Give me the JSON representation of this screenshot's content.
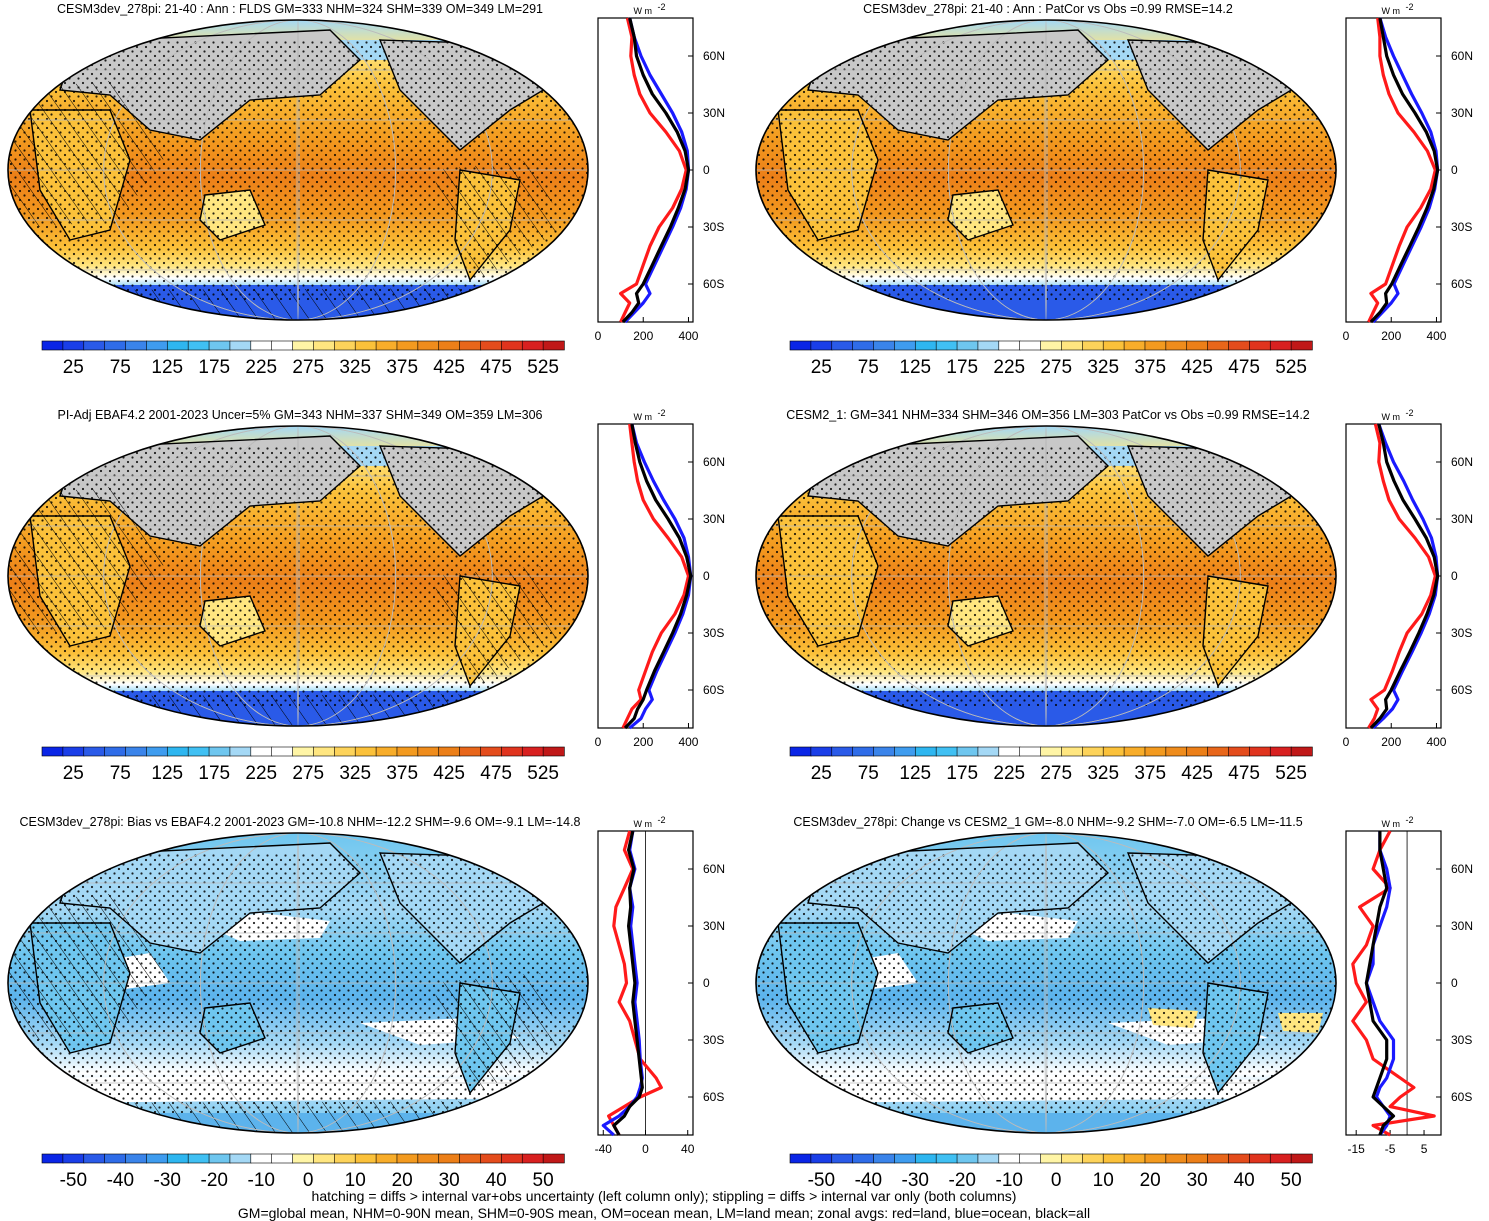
{
  "colors": {
    "ocean_warm_light": "#ffe680",
    "ocean_warm": "#fbc13a",
    "ocean_warm_deep": "#f39a1f",
    "ocean_hot": "#ec7f18",
    "ocean_cool": "#5cb3ec",
    "ocean_cold": "#2d62e0",
    "land_gray": "#c8c8c8",
    "line_land": "#ff1a1a",
    "line_ocean": "#1a1aff",
    "line_all": "#000000"
  },
  "panels": [
    {
      "title": "CESM3dev_278pi: 21-40 : Ann : FLDS GM=333 NHM=324 SHM=339 OM=349 LM=291",
      "colorbar_labels": [
        "25",
        "75",
        "125",
        "175",
        "225",
        "275",
        "325",
        "375",
        "425",
        "475",
        "525"
      ],
      "colorbar_colors": [
        "#0a25e6",
        "#1a3ee8",
        "#2a5ae8",
        "#2f6ce8",
        "#3a84ea",
        "#3e9cef",
        "#2eb6f0",
        "#40c0f3",
        "#6ec6ef",
        "#a4d8f5",
        "#ffffff",
        "#ffffff",
        "#fff5a6",
        "#ffe680",
        "#fdd35a",
        "#fbc13a",
        "#f8ad2a",
        "#f39a1f",
        "#ef8c1c",
        "#ec7f18",
        "#e8661a",
        "#e44c1c",
        "#e0341e",
        "#d82020",
        "#c01818"
      ],
      "map_style": "warm",
      "profile": {
        "unit": "W m",
        "unit_sup": "-2",
        "x_ticks": [
          "0",
          "200",
          "400"
        ],
        "xlim": [
          0,
          420
        ],
        "y_ticks": [
          "60N",
          "30N",
          "0",
          "30S",
          "60S"
        ],
        "lat": [
          80,
          70,
          60,
          50,
          40,
          30,
          20,
          10,
          0,
          -10,
          -20,
          -30,
          -40,
          -50,
          -60,
          -65,
          -70,
          -75,
          -80
        ],
        "land": [
          130,
          150,
          145,
          160,
          185,
          230,
          300,
          360,
          390,
          370,
          330,
          270,
          230,
          200,
          170,
          100,
          140,
          120,
          100
        ],
        "ocean": [
          140,
          160,
          190,
          230,
          280,
          330,
          370,
          395,
          400,
          390,
          365,
          330,
          290,
          250,
          210,
          230,
          200,
          160,
          120
        ],
        "all": [
          140,
          160,
          170,
          200,
          240,
          300,
          350,
          385,
          400,
          385,
          355,
          320,
          280,
          240,
          200,
          170,
          180,
          150,
          110
        ]
      }
    },
    {
      "title": "CESM3dev_278pi: 21-40 : Ann : PatCor vs Obs =0.99 RMSE=14.2",
      "colorbar_labels": [
        "25",
        "75",
        "125",
        "175",
        "225",
        "275",
        "325",
        "375",
        "425",
        "475",
        "525"
      ],
      "colorbar_colors": [
        "#0a25e6",
        "#1a3ee8",
        "#2a5ae8",
        "#2f6ce8",
        "#3a84ea",
        "#3e9cef",
        "#2eb6f0",
        "#40c0f3",
        "#6ec6ef",
        "#a4d8f5",
        "#ffffff",
        "#ffffff",
        "#fff5a6",
        "#ffe680",
        "#fdd35a",
        "#fbc13a",
        "#f8ad2a",
        "#f39a1f",
        "#ef8c1c",
        "#ec7f18",
        "#e8661a",
        "#e44c1c",
        "#e0341e",
        "#d82020",
        "#c01818"
      ],
      "map_style": "warm",
      "profile": {
        "unit": "W m",
        "unit_sup": "-2",
        "x_ticks": [
          "0",
          "200",
          "400"
        ],
        "xlim": [
          0,
          420
        ],
        "y_ticks": [
          "60N",
          "30N",
          "0",
          "30S",
          "60S"
        ],
        "lat": [
          80,
          70,
          60,
          50,
          40,
          30,
          20,
          10,
          0,
          -10,
          -20,
          -30,
          -40,
          -50,
          -60,
          -65,
          -70,
          -75,
          -80
        ],
        "land": [
          140,
          150,
          150,
          165,
          190,
          230,
          300,
          360,
          395,
          375,
          330,
          270,
          235,
          205,
          175,
          110,
          140,
          120,
          100
        ],
        "ocean": [
          150,
          175,
          210,
          250,
          290,
          335,
          375,
          398,
          405,
          392,
          368,
          332,
          292,
          252,
          212,
          230,
          200,
          160,
          120
        ],
        "all": [
          150,
          165,
          180,
          210,
          250,
          305,
          355,
          390,
          405,
          388,
          358,
          322,
          282,
          242,
          202,
          175,
          180,
          150,
          110
        ]
      }
    },
    {
      "title": "PI-Adj EBAF4.2 2001-2023 Uncer=5% GM=343 NHM=337 SHM=349 OM=359 LM=306",
      "colorbar_labels": [
        "25",
        "75",
        "125",
        "175",
        "225",
        "275",
        "325",
        "375",
        "425",
        "475",
        "525"
      ],
      "colorbar_colors": [
        "#0a25e6",
        "#1a3ee8",
        "#2a5ae8",
        "#2f6ce8",
        "#3a84ea",
        "#3e9cef",
        "#2eb6f0",
        "#40c0f3",
        "#6ec6ef",
        "#a4d8f5",
        "#ffffff",
        "#ffffff",
        "#fff5a6",
        "#ffe680",
        "#fdd35a",
        "#fbc13a",
        "#f8ad2a",
        "#f39a1f",
        "#ef8c1c",
        "#ec7f18",
        "#e8661a",
        "#e44c1c",
        "#e0341e",
        "#d82020",
        "#c01818"
      ],
      "map_style": "warm",
      "profile": {
        "unit": "W m",
        "unit_sup": "-2",
        "x_ticks": [
          "0",
          "200",
          "400"
        ],
        "xlim": [
          0,
          420
        ],
        "y_ticks": [
          "60N",
          "30N",
          "0",
          "30S",
          "60S"
        ],
        "lat": [
          80,
          70,
          60,
          50,
          40,
          30,
          20,
          10,
          0,
          -10,
          -20,
          -30,
          -40,
          -50,
          -60,
          -65,
          -70,
          -75,
          -80
        ],
        "land": [
          140,
          150,
          160,
          175,
          200,
          245,
          310,
          370,
          400,
          380,
          340,
          280,
          240,
          210,
          180,
          190,
          150,
          130,
          110
        ],
        "ocean": [
          150,
          170,
          205,
          245,
          290,
          340,
          380,
          400,
          410,
          400,
          375,
          340,
          300,
          260,
          225,
          240,
          210,
          190,
          140
        ],
        "all": [
          150,
          165,
          185,
          215,
          255,
          310,
          360,
          392,
          410,
          392,
          365,
          330,
          290,
          250,
          215,
          200,
          175,
          160,
          120
        ]
      }
    },
    {
      "title": "CESM2_1: GM=341 NHM=334 SHM=346 OM=356 LM=303 PatCor vs Obs =0.99 RMSE=14.2",
      "colorbar_labels": [
        "25",
        "75",
        "125",
        "175",
        "225",
        "275",
        "325",
        "375",
        "425",
        "475",
        "525"
      ],
      "colorbar_colors": [
        "#0a25e6",
        "#1a3ee8",
        "#2a5ae8",
        "#2f6ce8",
        "#3a84ea",
        "#3e9cef",
        "#2eb6f0",
        "#40c0f3",
        "#6ec6ef",
        "#a4d8f5",
        "#ffffff",
        "#ffffff",
        "#fff5a6",
        "#ffe680",
        "#fdd35a",
        "#fbc13a",
        "#f8ad2a",
        "#f39a1f",
        "#ef8c1c",
        "#ec7f18",
        "#e8661a",
        "#e44c1c",
        "#e0341e",
        "#d82020",
        "#c01818"
      ],
      "map_style": "warm",
      "profile": {
        "unit": "W m",
        "unit_sup": "-2",
        "x_ticks": [
          "0",
          "200",
          "400"
        ],
        "xlim": [
          0,
          420
        ],
        "y_ticks": [
          "60N",
          "30N",
          "0",
          "30S",
          "60S"
        ],
        "lat": [
          80,
          70,
          60,
          50,
          40,
          30,
          20,
          10,
          0,
          -10,
          -20,
          -30,
          -40,
          -50,
          -60,
          -65,
          -70,
          -75,
          -80
        ],
        "land": [
          130,
          150,
          145,
          165,
          190,
          235,
          305,
          365,
          395,
          375,
          335,
          270,
          235,
          205,
          170,
          110,
          140,
          125,
          100
        ],
        "ocean": [
          145,
          175,
          210,
          255,
          295,
          340,
          378,
          398,
          405,
          395,
          368,
          332,
          292,
          250,
          210,
          230,
          205,
          165,
          120
        ],
        "all": [
          145,
          165,
          180,
          212,
          252,
          305,
          355,
          390,
          405,
          388,
          358,
          322,
          282,
          240,
          200,
          175,
          180,
          150,
          110
        ]
      }
    },
    {
      "title": "CESM3dev_278pi: Bias vs EBAF4.2 2001-2023 GM=-10.8 NHM=-12.2 SHM=-9.6 OM=-9.1 LM=-14.8",
      "colorbar_labels": [
        "-50",
        "-40",
        "-30",
        "-20",
        "-10",
        "0",
        "10",
        "20",
        "30",
        "40",
        "50"
      ],
      "colorbar_colors": [
        "#0a25e6",
        "#1a3ee8",
        "#2a5ae8",
        "#2f6ce8",
        "#3a84ea",
        "#3e9cef",
        "#2eb6f0",
        "#40c0f3",
        "#6ec6ef",
        "#a4d8f5",
        "#ffffff",
        "#ffffff",
        "#fff5a6",
        "#ffe680",
        "#fdd35a",
        "#fbc13a",
        "#f8ad2a",
        "#f39a1f",
        "#ef8c1c",
        "#ec7f18",
        "#e8661a",
        "#e44c1c",
        "#e0341e",
        "#d82020",
        "#c01818"
      ],
      "map_style": "cool",
      "profile": {
        "unit": "W m",
        "unit_sup": "-2",
        "x_ticks": [
          "-40",
          "0",
          "40"
        ],
        "xlim": [
          -45,
          45
        ],
        "y_ticks": [
          "60N",
          "30N",
          "0",
          "30S",
          "60S"
        ],
        "lat": [
          80,
          70,
          60,
          50,
          40,
          30,
          20,
          10,
          0,
          -10,
          -20,
          -30,
          -40,
          -50,
          -55,
          -60,
          -65,
          -70,
          -75,
          -80
        ],
        "land": [
          -15,
          -20,
          -12,
          -20,
          -28,
          -30,
          -25,
          -20,
          -18,
          -25,
          -15,
          -10,
          -5,
          10,
          15,
          -5,
          -20,
          -35,
          -30,
          -25
        ],
        "ocean": [
          -12,
          -15,
          -10,
          -15,
          -12,
          -14,
          -12,
          -10,
          -8,
          -10,
          -8,
          -6,
          -5,
          -3,
          -5,
          -8,
          -15,
          -25,
          -40,
          -30
        ],
        "all": [
          -12,
          -16,
          -11,
          -15,
          -14,
          -16,
          -14,
          -12,
          -10,
          -12,
          -10,
          -8,
          -6,
          -4,
          -3,
          -6,
          -15,
          -20,
          -30,
          -25
        ]
      }
    },
    {
      "title": "CESM3dev_278pi: Change vs CESM2_1 GM=-8.0 NHM=-9.2 SHM=-7.0 OM=-6.5 LM=-11.5",
      "colorbar_labels": [
        "-50",
        "-40",
        "-30",
        "-20",
        "-10",
        "0",
        "10",
        "20",
        "30",
        "40",
        "50"
      ],
      "colorbar_colors": [
        "#0a25e6",
        "#1a3ee8",
        "#2a5ae8",
        "#2f6ce8",
        "#3a84ea",
        "#3e9cef",
        "#2eb6f0",
        "#40c0f3",
        "#6ec6ef",
        "#a4d8f5",
        "#ffffff",
        "#ffffff",
        "#fff5a6",
        "#ffe680",
        "#fdd35a",
        "#fbc13a",
        "#f8ad2a",
        "#f39a1f",
        "#ef8c1c",
        "#ec7f18",
        "#e8661a",
        "#e44c1c",
        "#e0341e",
        "#d82020",
        "#c01818"
      ],
      "map_style": "cool",
      "profile": {
        "unit": "W m",
        "unit_sup": "-2",
        "x_ticks": [
          "-15",
          "-5",
          "5"
        ],
        "xlim": [
          -18,
          10
        ],
        "y_ticks": [
          "60N",
          "30N",
          "0",
          "30S",
          "60S"
        ],
        "lat": [
          80,
          70,
          60,
          50,
          40,
          30,
          20,
          10,
          0,
          -10,
          -20,
          -30,
          -40,
          -50,
          -55,
          -60,
          -65,
          -70,
          -75,
          -80
        ],
        "land": [
          -5,
          -8,
          -10,
          -5,
          -14,
          -10,
          -12,
          -16,
          -15,
          -12,
          -16,
          -12,
          -10,
          -2,
          2,
          -2,
          -5,
          8,
          -10,
          -5
        ],
        "ocean": [
          -8,
          -8,
          -6,
          -5,
          -6,
          -8,
          -10,
          -10,
          -12,
          -10,
          -8,
          -4,
          -4,
          -6,
          -8,
          -9,
          -7,
          -5,
          -6,
          -8
        ],
        "all": [
          -8,
          -8,
          -7,
          -6,
          -8,
          -9,
          -10,
          -11,
          -12,
          -11,
          -10,
          -6,
          -6,
          -8,
          -9,
          -10,
          -7,
          -4,
          -7,
          -8
        ]
      }
    }
  ],
  "footer": {
    "line1": "hatching = diffs > internal var+obs uncertainty (left column only); stippling = diffs > internal var only (both columns)",
    "line2": "GM=global mean, NHM=0-90N mean, SHM=0-90S mean, OM=ocean mean, LM=land mean; zonal avgs: red=land, blue=ocean, black=all"
  }
}
